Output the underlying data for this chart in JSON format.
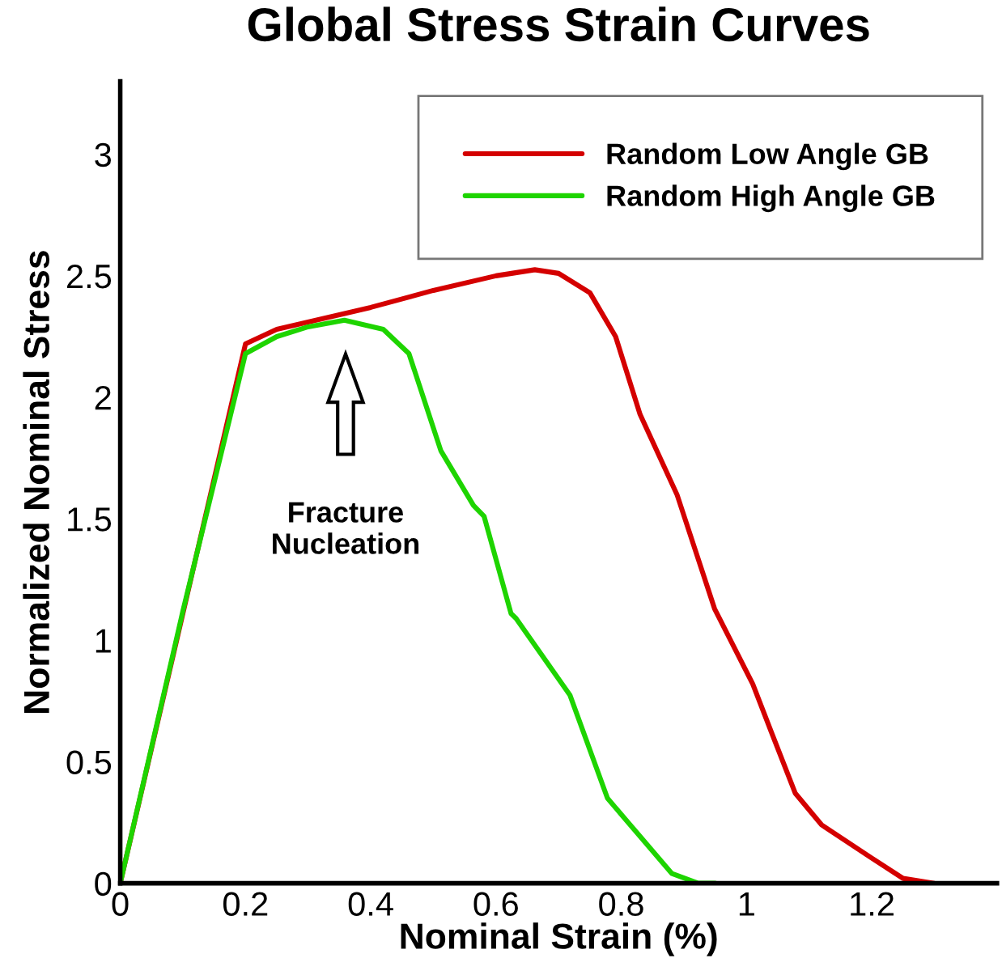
{
  "chart_data": {
    "type": "line",
    "title": "Global Stress Strain Curves",
    "xlabel": "Nominal Strain (%)",
    "ylabel": "Normalized Nominal Stress",
    "xlim": [
      0,
      1.4
    ],
    "ylim": [
      0,
      3.3
    ],
    "xticks": [
      0,
      0.2,
      0.4,
      0.6,
      0.8,
      1,
      1.2
    ],
    "yticks": [
      0,
      0.5,
      1,
      1.5,
      2,
      2.5,
      3
    ],
    "grid": false,
    "legend": "top right",
    "marker": "none",
    "line_style": "solid",
    "annotations": [
      "Fracture\nNucleation"
    ],
    "series": [
      {
        "name": "Random Low Angle GB",
        "color": "#d40000",
        "x": [
          0,
          0.2,
          0.25,
          0.3,
          0.4,
          0.5,
          0.6,
          0.662,
          0.7,
          0.75,
          0.791,
          0.83,
          0.889,
          0.949,
          1.01,
          1.04,
          1.078,
          1.12,
          1.198,
          1.25,
          1.3
        ],
        "values": [
          0,
          2.22,
          2.28,
          2.31,
          2.37,
          2.44,
          2.5,
          2.525,
          2.51,
          2.43,
          2.25,
          1.93,
          1.6,
          1.13,
          0.82,
          0.62,
          0.37,
          0.24,
          0.107,
          0.02,
          0
        ]
      },
      {
        "name": "Random High Angle GB",
        "color": "#1ed400",
        "x": [
          0,
          0.1,
          0.2,
          0.25,
          0.3,
          0.358,
          0.42,
          0.461,
          0.512,
          0.564,
          0.581,
          0.624,
          0.632,
          0.718,
          0.778,
          0.821,
          0.881,
          0.923,
          0.95
        ],
        "values": [
          0,
          1.12,
          2.18,
          2.25,
          2.29,
          2.317,
          2.28,
          2.18,
          1.78,
          1.555,
          1.51,
          1.11,
          1.09,
          0.775,
          0.35,
          0.22,
          0.04,
          0,
          0
        ]
      }
    ]
  }
}
